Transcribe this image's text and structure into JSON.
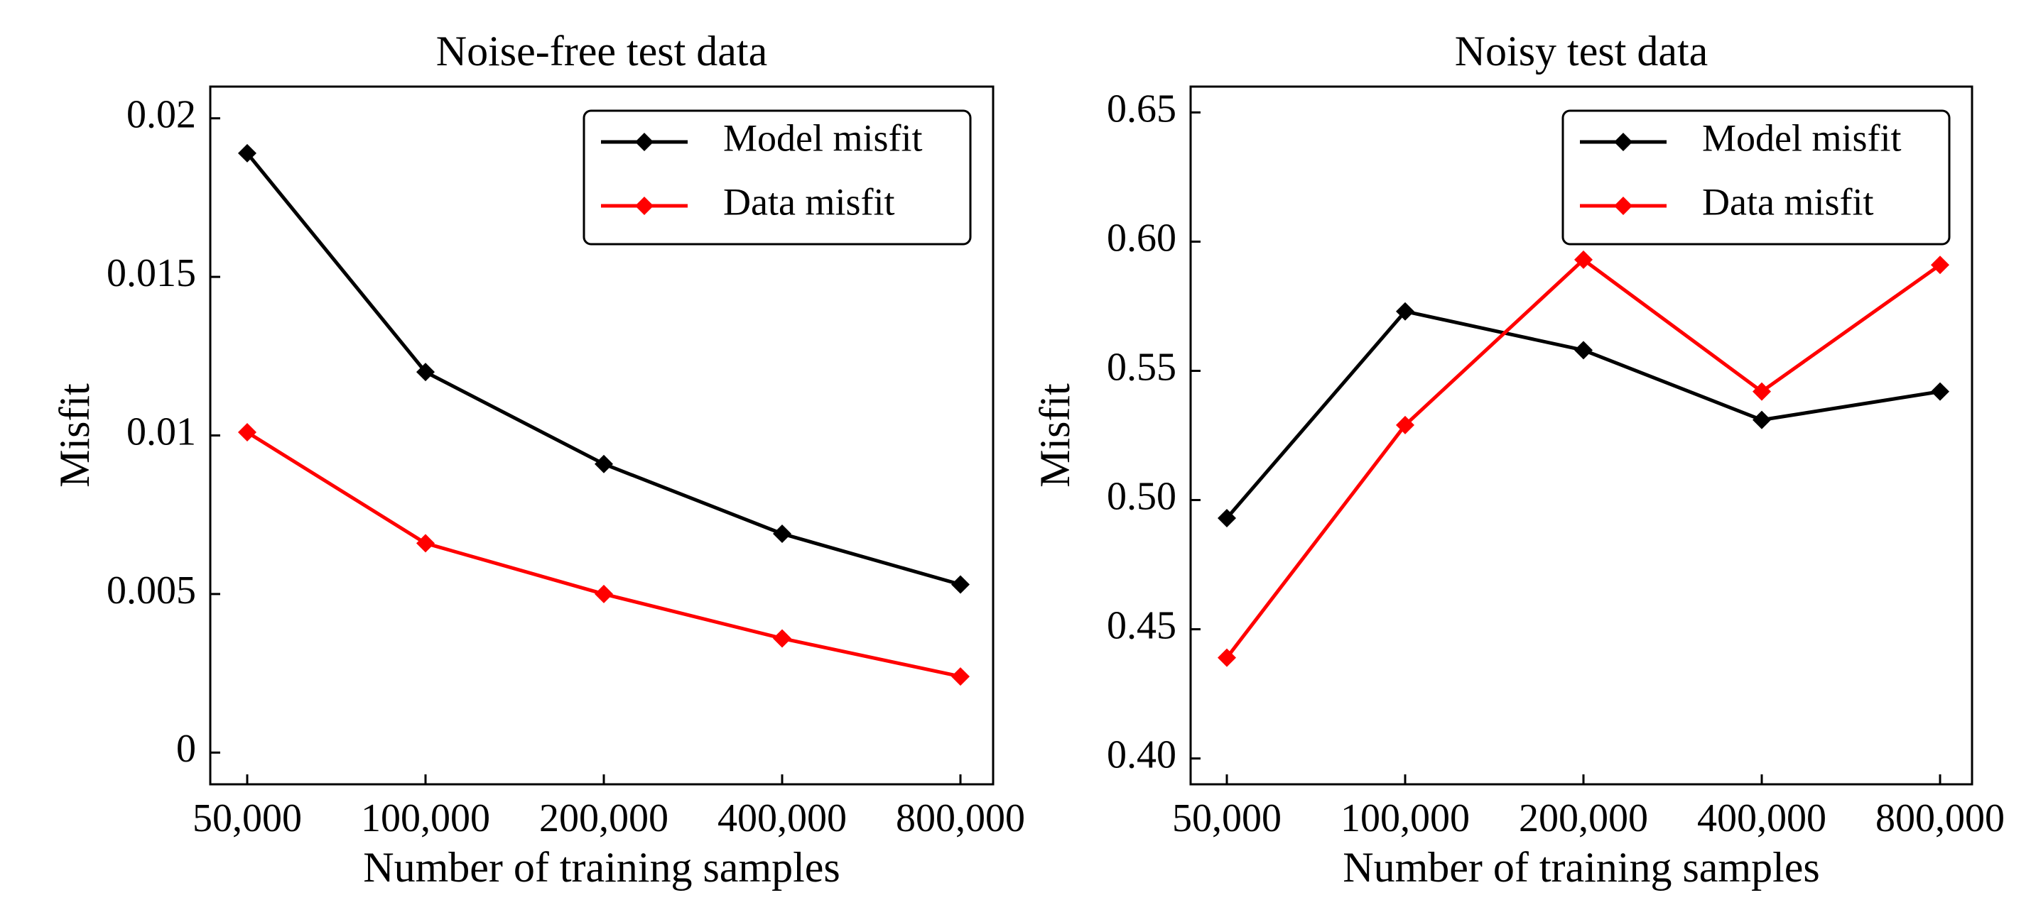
{
  "chart_data": [
    {
      "type": "line",
      "title": "Noise-free test data",
      "xlabel": "Number of training samples",
      "ylabel": "Misfit",
      "categories": [
        "50,000",
        "100,000",
        "200,000",
        "400,000",
        "800,000"
      ],
      "ylim": [
        -0.001,
        0.021
      ],
      "yticks": [
        0,
        0.005,
        0.01,
        0.015,
        0.02
      ],
      "ytick_labels": [
        "0",
        "0.005",
        "0.01",
        "0.015",
        "0.02"
      ],
      "legend_position": "top-right",
      "series": [
        {
          "name": "Model misfit",
          "color": "#000000",
          "values": [
            0.0189,
            0.012,
            0.0091,
            0.0069,
            0.0053
          ]
        },
        {
          "name": "Data misfit",
          "color": "#ff0000",
          "values": [
            0.0101,
            0.0066,
            0.005,
            0.0036,
            0.0024
          ]
        }
      ]
    },
    {
      "type": "line",
      "title": "Noisy test data",
      "xlabel": "Number of training samples",
      "ylabel": "Misfit",
      "categories": [
        "50,000",
        "100,000",
        "200,000",
        "400,000",
        "800,000"
      ],
      "ylim": [
        0.39,
        0.66
      ],
      "yticks": [
        0.4,
        0.45,
        0.5,
        0.55,
        0.6,
        0.65
      ],
      "ytick_labels": [
        "0.40",
        "0.45",
        "0.50",
        "0.55",
        "0.60",
        "0.65"
      ],
      "legend_position": "top-right",
      "series": [
        {
          "name": "Model misfit",
          "color": "#000000",
          "values": [
            0.493,
            0.573,
            0.558,
            0.531,
            0.542
          ]
        },
        {
          "name": "Data misfit",
          "color": "#ff0000",
          "values": [
            0.439,
            0.529,
            0.593,
            0.542,
            0.591
          ]
        }
      ]
    }
  ]
}
